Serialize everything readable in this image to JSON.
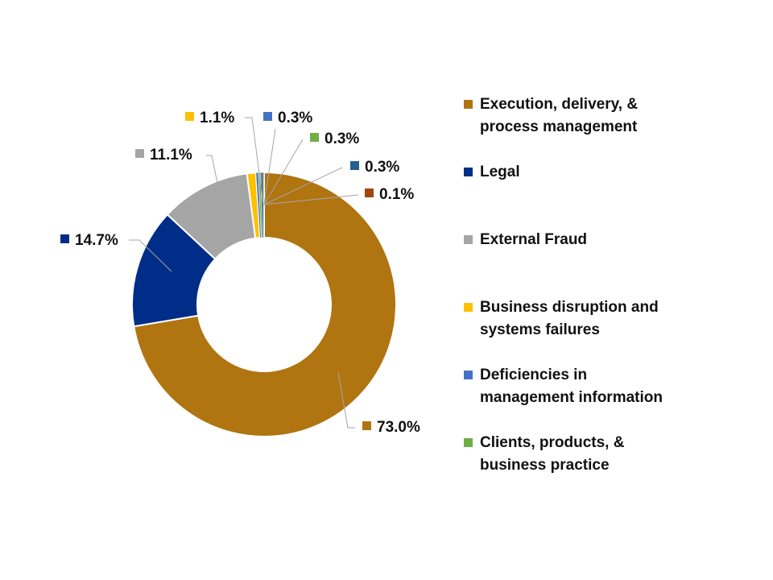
{
  "chart_data": {
    "type": "pie",
    "donut": true,
    "categories": [
      "Execution, delivery, & process management",
      "Legal",
      "External Fraud",
      "Business disruption and systems failures",
      "Deficiencies in management information",
      "Clients, products, & business practice",
      "",
      ""
    ],
    "values": [
      73.0,
      14.7,
      11.1,
      1.1,
      0.3,
      0.3,
      0.3,
      0.1
    ],
    "data_labels": [
      "73.0%",
      "14.7%",
      "11.1%",
      "1.1%",
      "0.3%",
      "0.3%",
      "0.3%",
      "0.1%"
    ],
    "colors": [
      "#B07410",
      "#002D87",
      "#A5A5A5",
      "#FFC000",
      "#4472C4",
      "#70AD47",
      "#255E91",
      "#9E480E"
    ],
    "legend": [
      {
        "label": "Execution, delivery, & process management",
        "color": "#B07410"
      },
      {
        "label": "Legal",
        "color": "#002D87"
      },
      {
        "label": "External Fraud",
        "color": "#A5A5A5"
      },
      {
        "label": "Business disruption and systems failures",
        "color": "#FFC000"
      },
      {
        "label": "Deficiencies in management information",
        "color": "#4472C4"
      },
      {
        "label": "Clients, products, & business practice",
        "color": "#70AD47"
      }
    ],
    "legend_position": "right",
    "data_label_style": "callout with leader lines"
  }
}
